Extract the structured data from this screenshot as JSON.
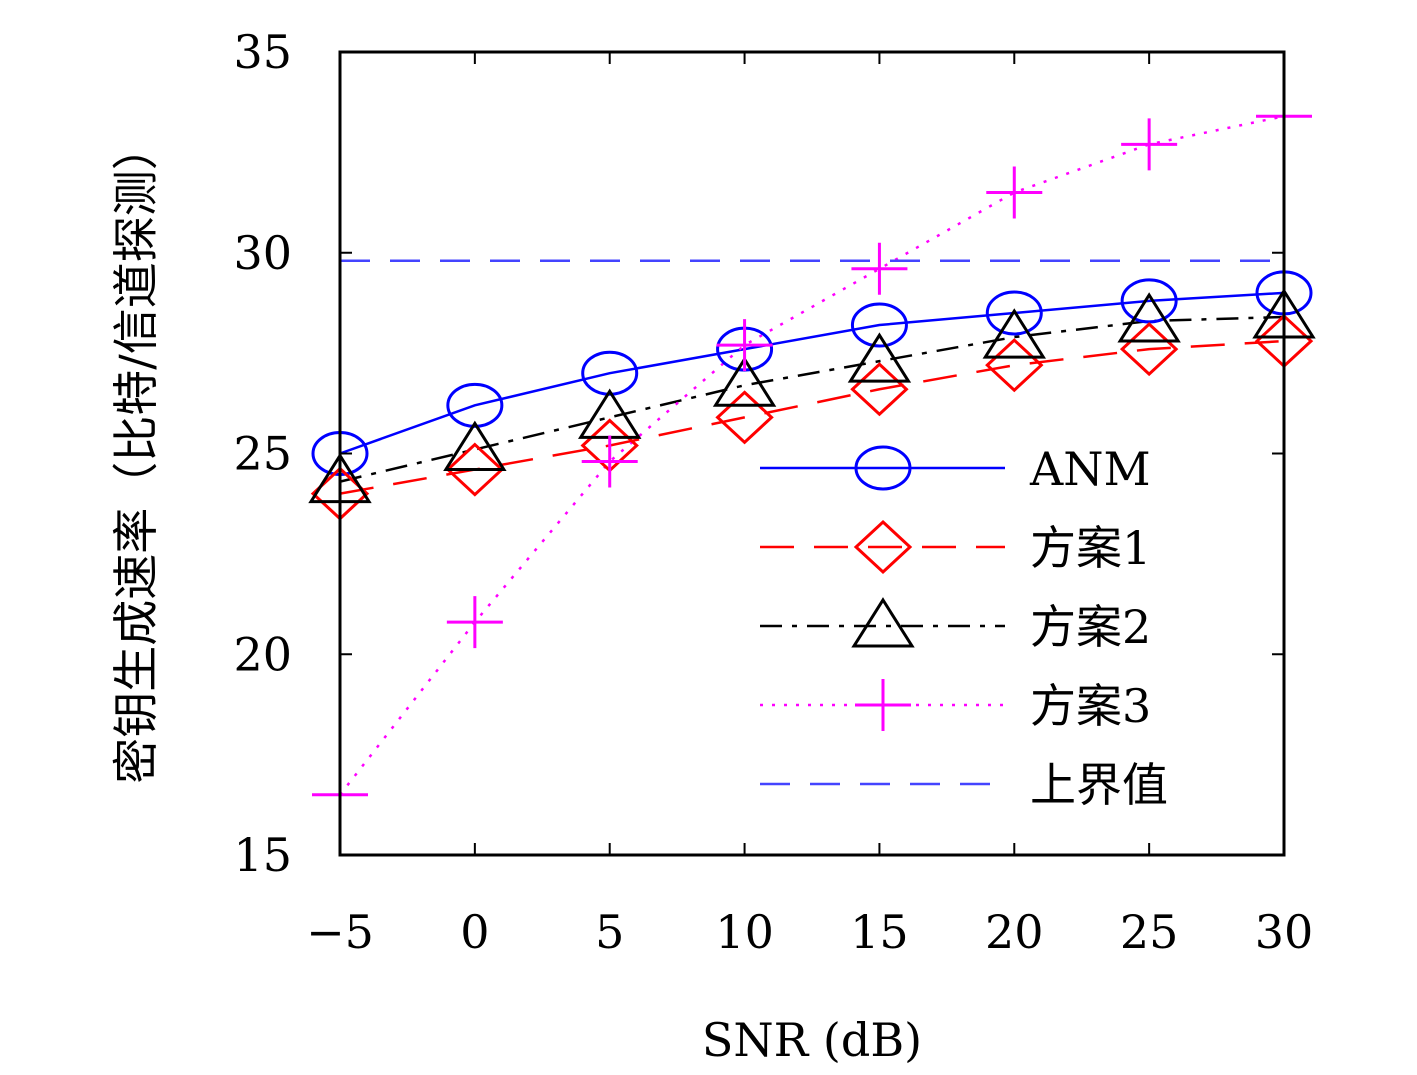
{
  "chart_data": {
    "type": "line",
    "title": "",
    "xlabel": "SNR (dB)",
    "ylabel": "密钥生成速率（比特/信道探测）",
    "x": [
      -5,
      0,
      5,
      10,
      15,
      20,
      25,
      30
    ],
    "xticks": [
      "−5",
      "0",
      "5",
      "10",
      "15",
      "20",
      "25",
      "30"
    ],
    "yticks": [
      "15",
      "20",
      "25",
      "30",
      "35"
    ],
    "xlim": [
      -5,
      30
    ],
    "ylim": [
      15,
      35
    ],
    "series": [
      {
        "name": "ANM",
        "color": "#0000ff",
        "dash": "solid",
        "marker": "circle",
        "values": [
          25.0,
          26.2,
          27.0,
          27.6,
          28.2,
          28.5,
          28.8,
          29.0
        ]
      },
      {
        "name": "方案1",
        "color": "#ff0000",
        "dash": "dashed",
        "marker": "diamond",
        "values": [
          24.0,
          24.6,
          25.2,
          25.9,
          26.6,
          27.2,
          27.6,
          27.8
        ]
      },
      {
        "name": "方案2",
        "color": "#000000",
        "dash": "dashdot",
        "marker": "triangle",
        "values": [
          24.3,
          25.1,
          25.9,
          26.7,
          27.3,
          27.9,
          28.3,
          28.4
        ]
      },
      {
        "name": "方案3",
        "color": "#ff00ff",
        "dash": "dotted",
        "marker": "plus",
        "values": [
          16.5,
          20.8,
          24.8,
          27.7,
          29.6,
          31.5,
          32.7,
          33.4
        ]
      },
      {
        "name": "上界值",
        "color": "#4444ff",
        "dash": "longdash",
        "marker": "none",
        "values": [
          29.8,
          29.8,
          29.8,
          29.8,
          29.8,
          29.8,
          29.8,
          29.8
        ]
      }
    ],
    "legend_position": "bottom-right",
    "grid": false
  }
}
